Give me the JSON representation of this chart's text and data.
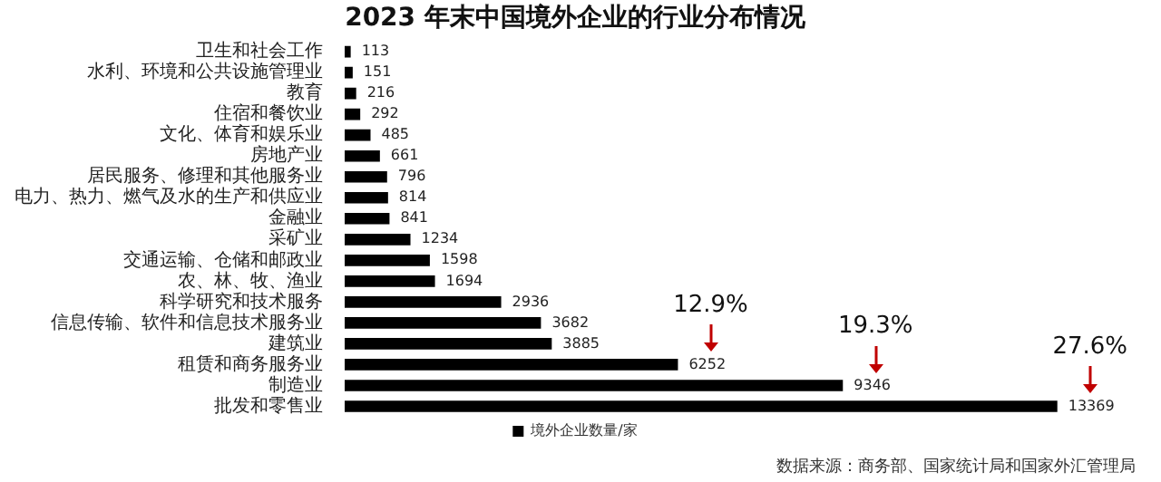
{
  "chart_data": {
    "type": "bar",
    "orientation": "horizontal",
    "title": "2023 年末中国境外企业的行业分布情况",
    "categories": [
      "卫生和社会工作",
      "水利、环境和公共设施管理业",
      "教育",
      "住宿和餐饮业",
      "文化、体育和娱乐业",
      "房地产业",
      "居民服务、修理和其他服务业",
      "电力、热力、燃气及水的生产和供应业",
      "金融业",
      "采矿业",
      "交通运输、仓储和邮政业",
      "农、林、牧、渔业",
      "科学研究和技术服务",
      "信息传输、软件和信息技术服务业",
      "建筑业",
      "租赁和商务服务业",
      "制造业",
      "批发和零售业"
    ],
    "series": [
      {
        "name": "境外企业数量/家",
        "color": "#000000",
        "values": [
          113,
          151,
          216,
          292,
          485,
          661,
          796,
          814,
          841,
          1234,
          1598,
          1694,
          2936,
          3682,
          3885,
          6252,
          9346,
          13369
        ]
      }
    ],
    "data_labels": true,
    "legend": "bottom",
    "annotations": [
      {
        "text": "12.9%",
        "x": 6252,
        "y": "租赁和商务服务业"
      },
      {
        "text": "19.3%",
        "x": 9346,
        "y": "制造业"
      },
      {
        "text": "27.6%",
        "x": 13369,
        "y": "批发和零售业"
      },
      "数据来源：商务部、国家统计局和国家外汇管理局"
    ]
  }
}
